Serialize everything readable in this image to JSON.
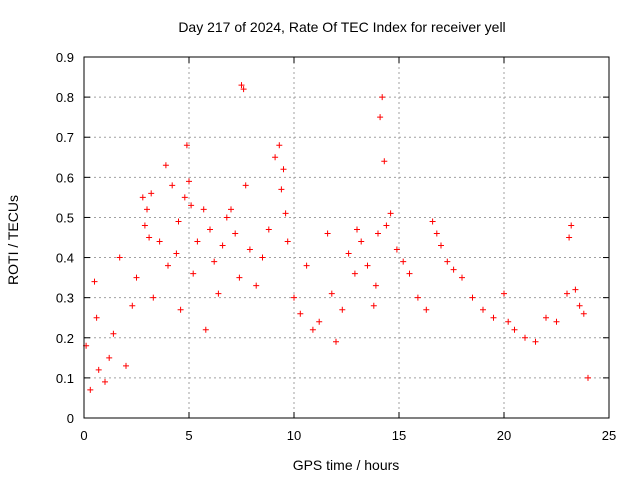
{
  "chart_data": {
    "type": "scatter",
    "title": "Day 217 of 2024, Rate Of TEC Index for receiver yell",
    "xlabel": "GPS time / hours",
    "ylabel": "ROTI / TECUs",
    "xlim": [
      0,
      25
    ],
    "ylim": [
      0,
      0.9
    ],
    "xticks": [
      0,
      5,
      10,
      15,
      20,
      25
    ],
    "yticks": [
      0,
      0.1,
      0.2,
      0.3,
      0.4,
      0.5,
      0.6,
      0.7,
      0.8,
      0.9
    ],
    "grid": true,
    "marker": "+",
    "color": "#ff0000",
    "series": [
      {
        "name": "ROTI",
        "x": [
          0.1,
          0.3,
          0.5,
          0.6,
          0.7,
          1.0,
          1.2,
          1.4,
          1.7,
          2.0,
          2.3,
          2.5,
          2.8,
          2.9,
          3.0,
          3.1,
          3.2,
          3.3,
          3.6,
          3.9,
          4.0,
          4.2,
          4.4,
          4.5,
          4.6,
          4.8,
          4.9,
          5.0,
          5.1,
          5.2,
          5.4,
          5.7,
          5.8,
          6.0,
          6.2,
          6.4,
          6.6,
          6.8,
          7.0,
          7.2,
          7.4,
          7.5,
          7.6,
          7.7,
          7.9,
          8.2,
          8.5,
          8.8,
          9.1,
          9.3,
          9.4,
          9.5,
          9.6,
          9.7,
          10.0,
          10.3,
          10.6,
          10.9,
          11.2,
          11.6,
          11.8,
          12.0,
          12.3,
          12.6,
          12.9,
          13.0,
          13.2,
          13.5,
          13.8,
          13.9,
          14.0,
          14.1,
          14.2,
          14.3,
          14.4,
          14.6,
          14.9,
          15.2,
          15.5,
          15.9,
          16.3,
          16.6,
          16.8,
          17.0,
          17.3,
          17.6,
          18.0,
          18.5,
          19.0,
          19.5,
          20.0,
          20.2,
          20.5,
          21.0,
          21.5,
          22.0,
          22.5,
          23.0,
          23.1,
          23.2,
          23.4,
          23.6,
          23.8,
          24.0
        ],
        "y": [
          0.18,
          0.07,
          0.34,
          0.25,
          0.12,
          0.09,
          0.15,
          0.21,
          0.4,
          0.13,
          0.28,
          0.35,
          0.55,
          0.48,
          0.52,
          0.45,
          0.56,
          0.3,
          0.44,
          0.63,
          0.38,
          0.58,
          0.41,
          0.49,
          0.27,
          0.55,
          0.68,
          0.59,
          0.53,
          0.36,
          0.44,
          0.52,
          0.22,
          0.47,
          0.39,
          0.31,
          0.43,
          0.5,
          0.52,
          0.46,
          0.35,
          0.83,
          0.82,
          0.58,
          0.42,
          0.33,
          0.4,
          0.47,
          0.65,
          0.68,
          0.57,
          0.62,
          0.51,
          0.44,
          0.3,
          0.26,
          0.38,
          0.22,
          0.24,
          0.46,
          0.31,
          0.19,
          0.27,
          0.41,
          0.36,
          0.47,
          0.44,
          0.38,
          0.28,
          0.33,
          0.46,
          0.75,
          0.8,
          0.64,
          0.48,
          0.51,
          0.42,
          0.39,
          0.36,
          0.3,
          0.27,
          0.49,
          0.46,
          0.43,
          0.39,
          0.37,
          0.35,
          0.3,
          0.27,
          0.25,
          0.31,
          0.24,
          0.22,
          0.2,
          0.19,
          0.25,
          0.24,
          0.31,
          0.45,
          0.48,
          0.32,
          0.28,
          0.26,
          0.1
        ]
      }
    ]
  }
}
